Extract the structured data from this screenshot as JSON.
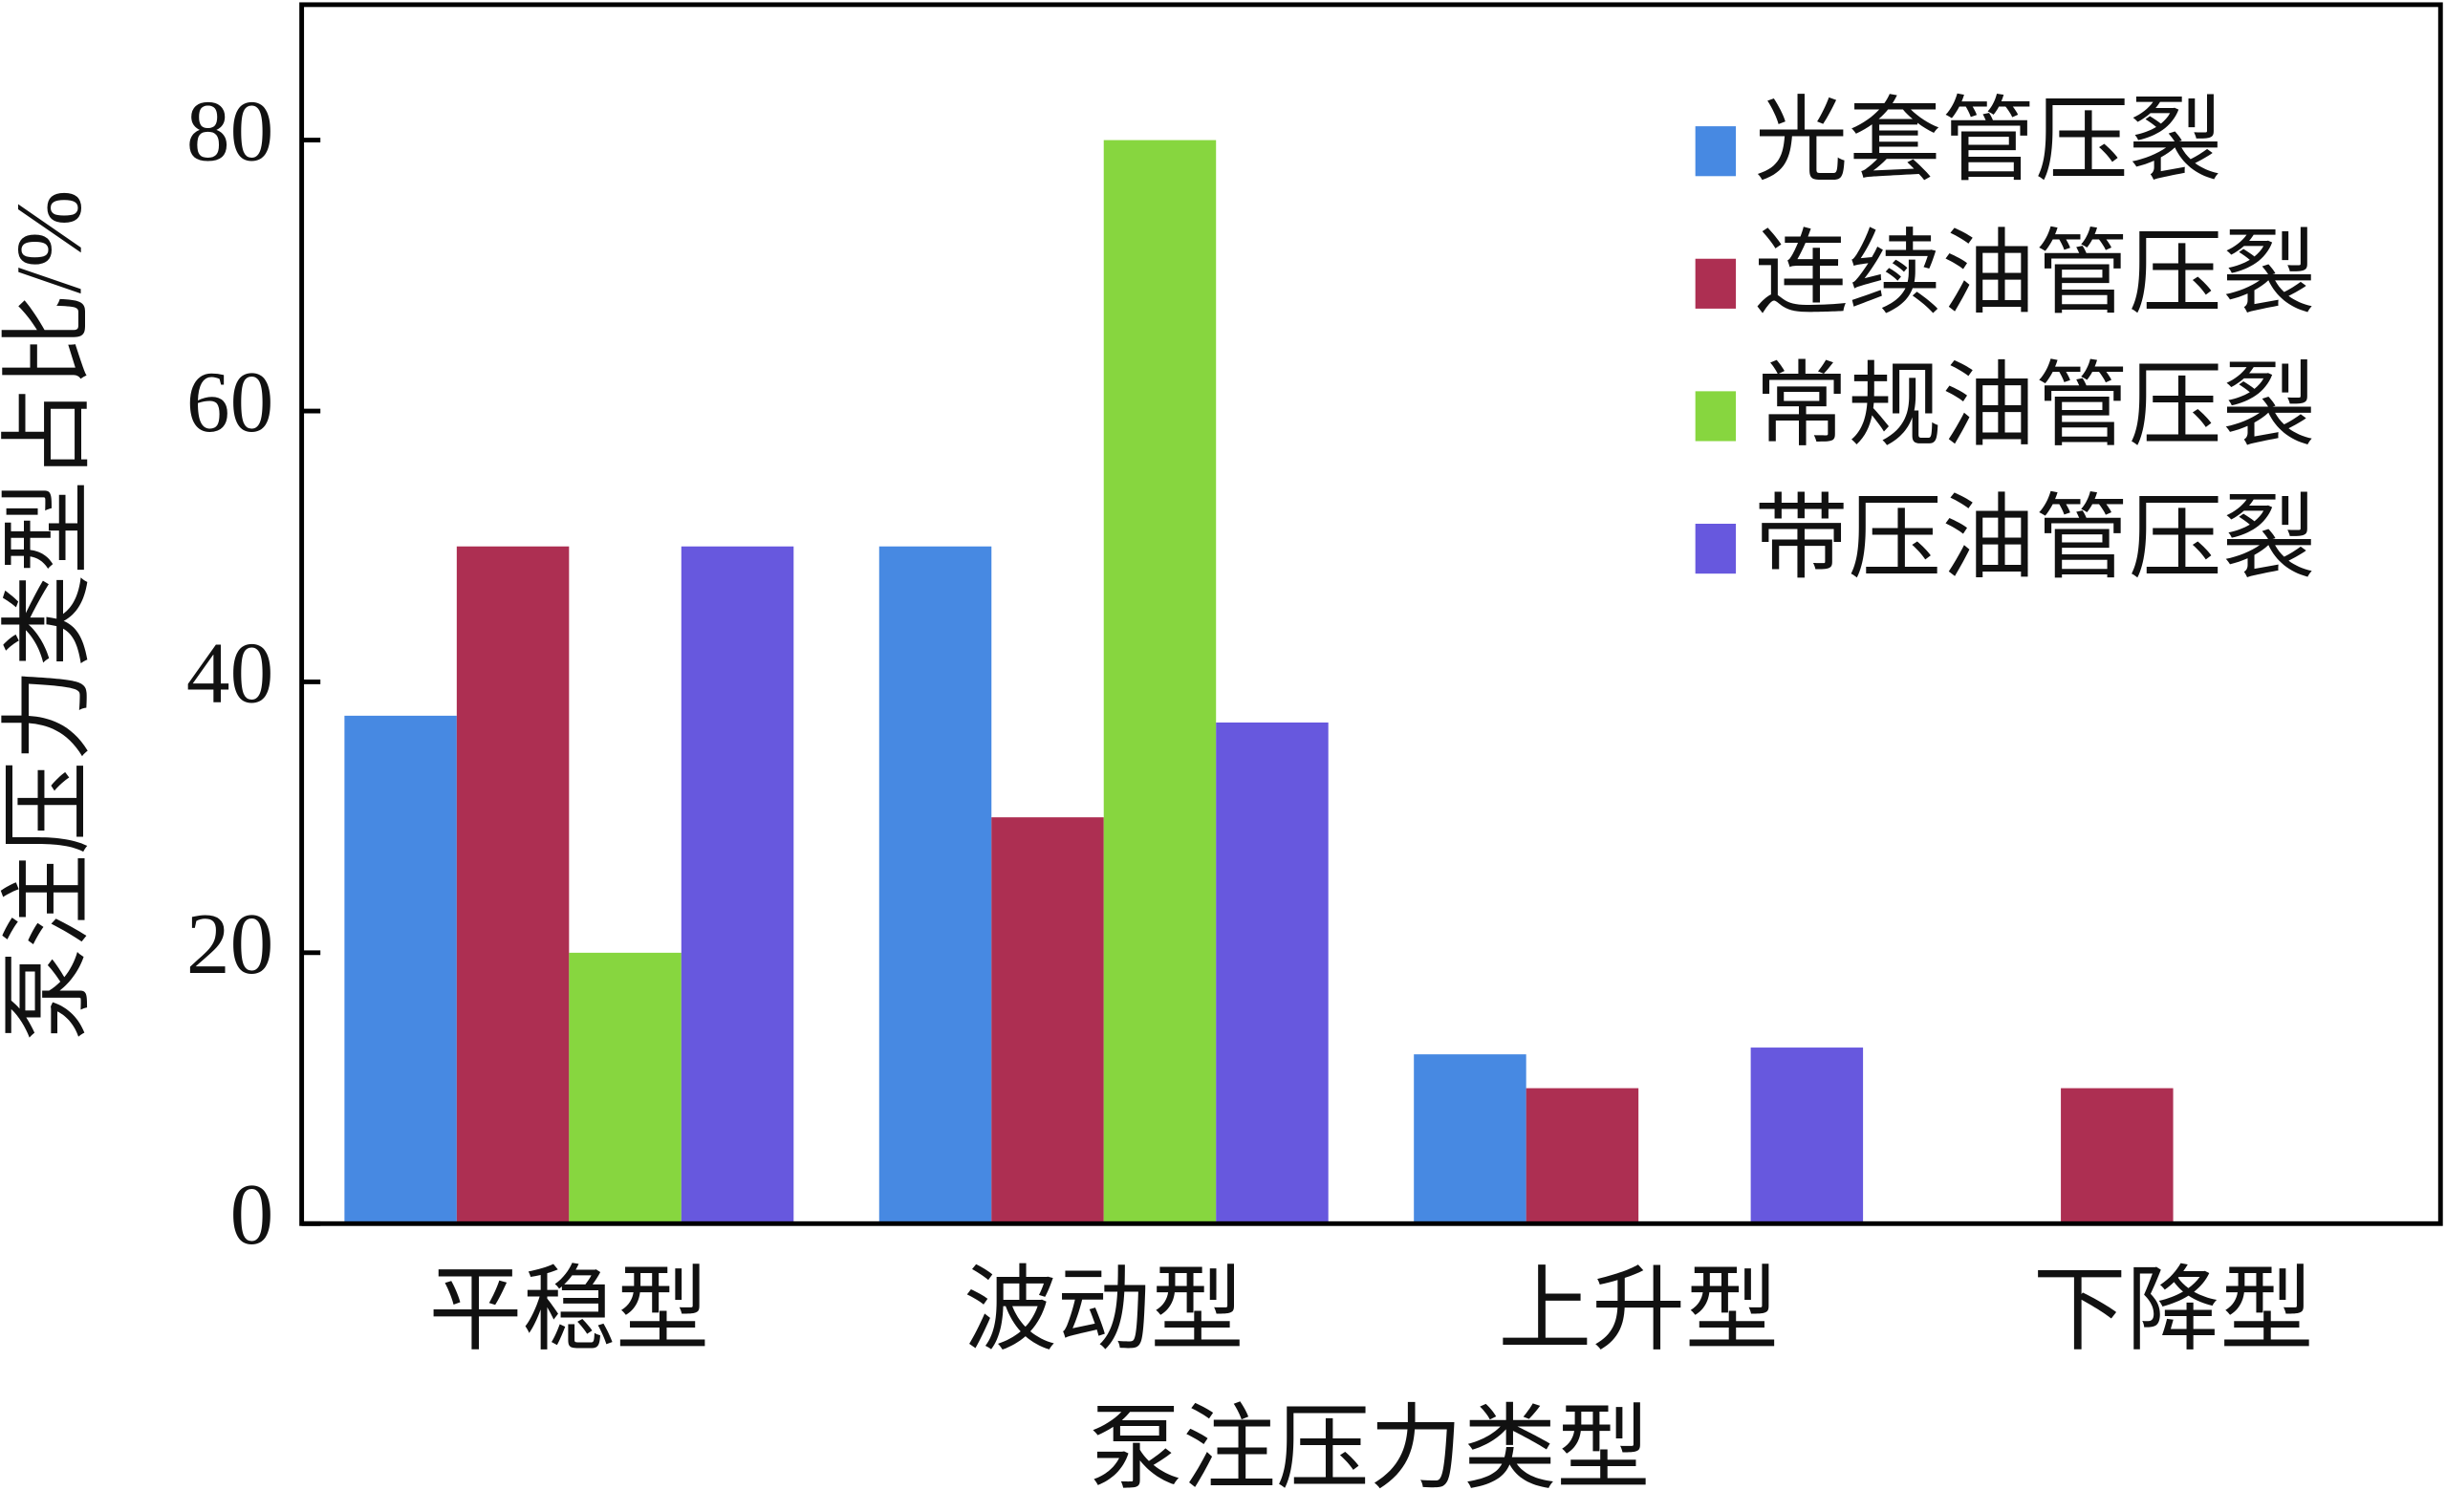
{
  "chart_data": {
    "type": "bar",
    "x_label": "泵注压力类型",
    "y_label": "泵注压力类型占比/%",
    "categories": [
      "平稳型",
      "波动型",
      "上升型",
      "下降型"
    ],
    "series": [
      {
        "name": "光套管压裂",
        "color": "#4789e2",
        "values": [
          37.5,
          50,
          12.5,
          0
        ]
      },
      {
        "name": "连续油管压裂",
        "color": "#ad2f52",
        "values": [
          50,
          30,
          10,
          10
        ]
      },
      {
        "name": "常规油管压裂",
        "color": "#87d63f",
        "values": [
          20,
          80,
          0,
          0
        ]
      },
      {
        "name": "带压油管压裂",
        "color": "#6758de",
        "values": [
          50,
          37,
          13,
          0
        ]
      }
    ],
    "ylim": [
      0,
      90
    ],
    "yticks": [
      0,
      20,
      40,
      60,
      80
    ],
    "legend": "upper-right",
    "grid": false
  }
}
